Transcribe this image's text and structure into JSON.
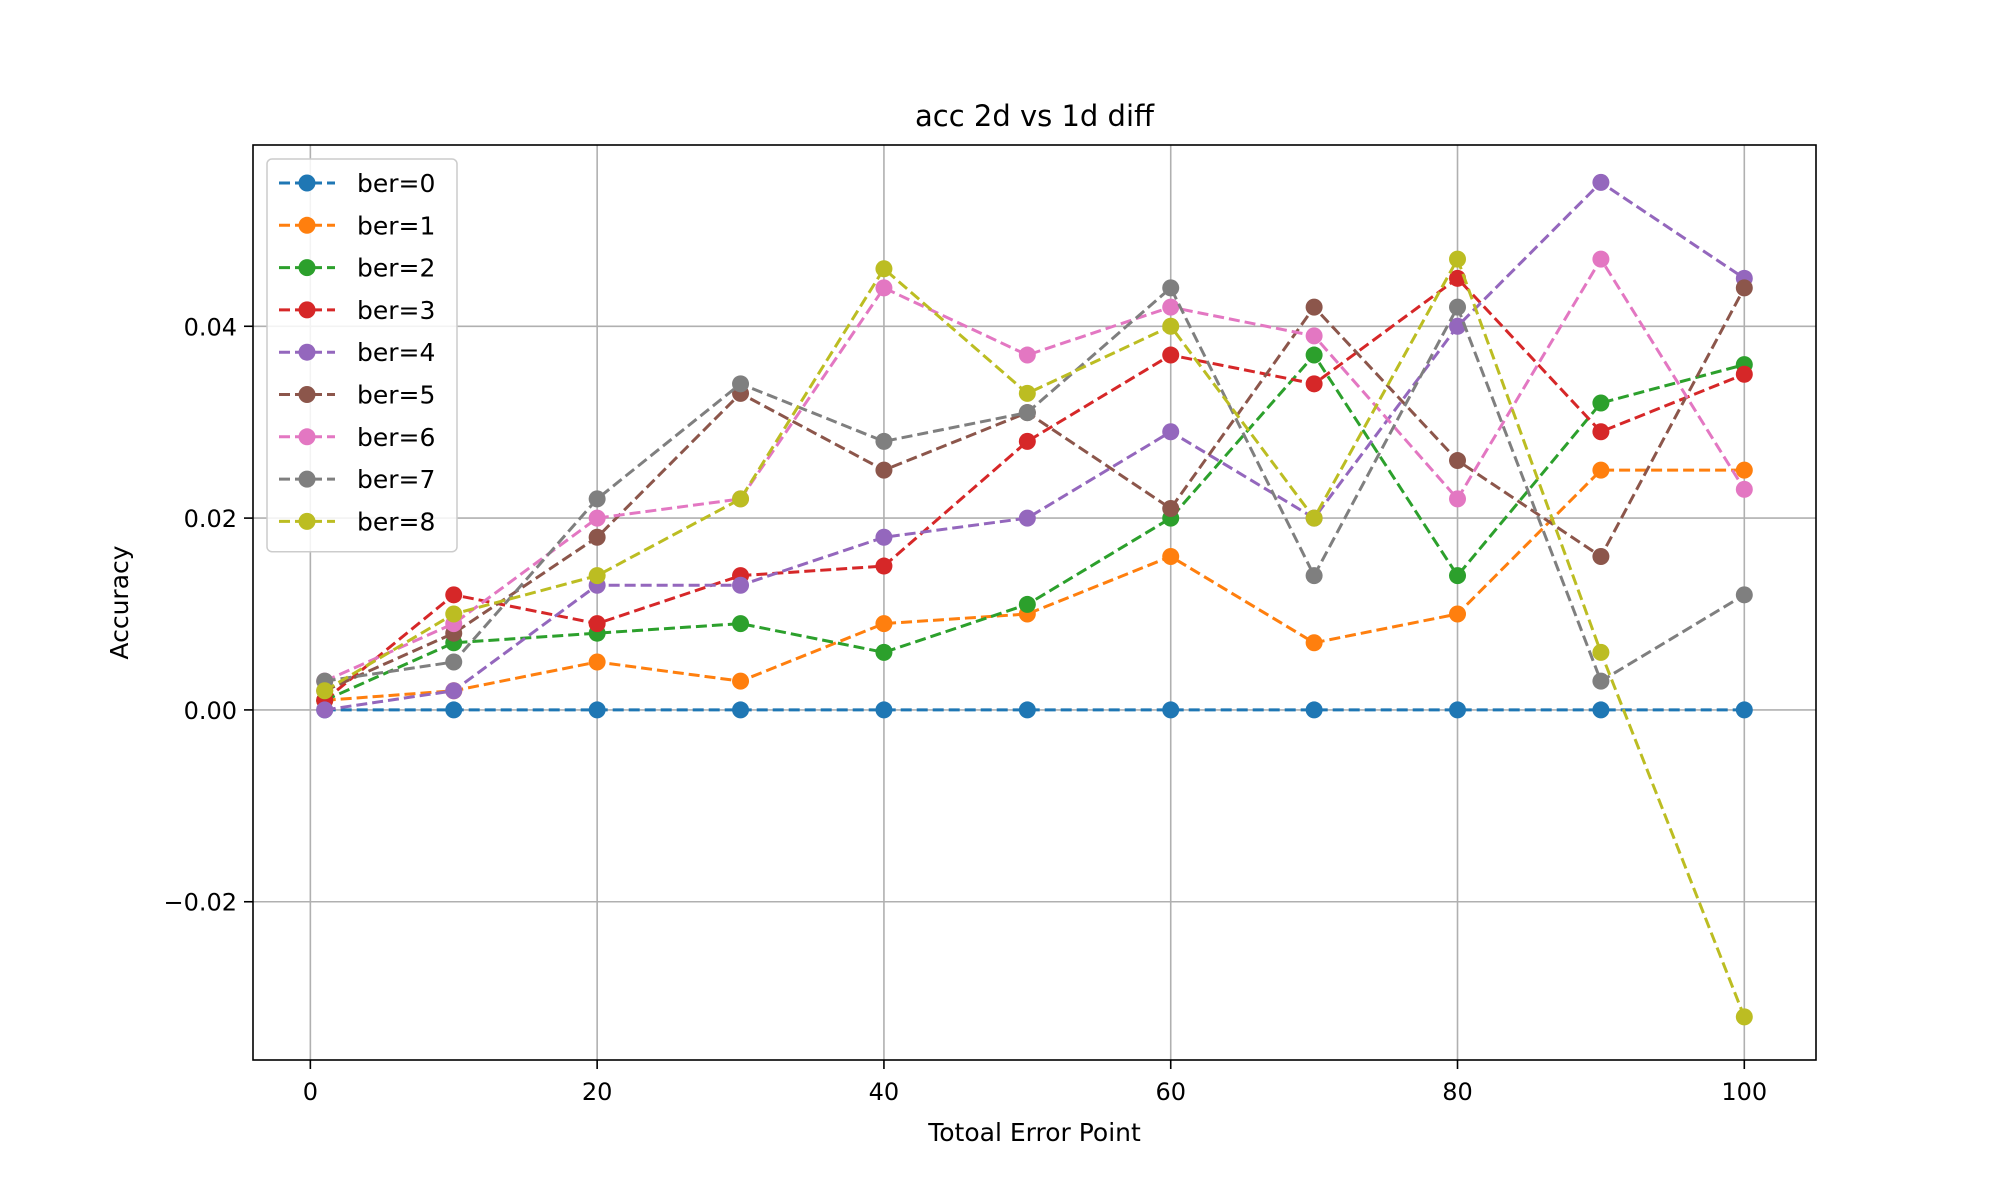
{
  "chart_data": {
    "type": "line",
    "title": "acc 2d vs 1d diff",
    "xlabel": "Totoal Error Point",
    "ylabel": "Accuracy",
    "x": [
      1,
      10,
      20,
      30,
      40,
      50,
      60,
      70,
      80,
      90,
      100
    ],
    "xlim": [
      -4,
      105
    ],
    "ylim": [
      -0.0365,
      0.0589
    ],
    "xticks": [
      0,
      20,
      40,
      60,
      80,
      100
    ],
    "xtick_labels": [
      "0",
      "20",
      "40",
      "60",
      "80",
      "100"
    ],
    "yticks": [
      -0.02,
      0.0,
      0.02,
      0.04
    ],
    "ytick_labels": [
      "−0.02",
      "0.00",
      "0.02",
      "0.04"
    ],
    "grid": true,
    "legend_position": "top-left",
    "line_style": "dashed",
    "marker": "circle",
    "series": [
      {
        "name": "ber=0",
        "color": "#1f77b4",
        "values": [
          0,
          0,
          0,
          0,
          0,
          0,
          0,
          0,
          0,
          0,
          0
        ]
      },
      {
        "name": "ber=1",
        "color": "#ff7f0e",
        "values": [
          0.001,
          0.002,
          0.005,
          0.003,
          0.009,
          0.01,
          0.016,
          0.007,
          0.01,
          0.025,
          0.025
        ]
      },
      {
        "name": "ber=2",
        "color": "#2ca02c",
        "values": [
          0.001,
          0.007,
          0.008,
          0.009,
          0.006,
          0.011,
          0.02,
          0.037,
          0.014,
          0.032,
          0.036
        ]
      },
      {
        "name": "ber=3",
        "color": "#d62728",
        "values": [
          0.001,
          0.012,
          0.009,
          0.014,
          0.015,
          0.028,
          0.037,
          0.034,
          0.045,
          0.029,
          0.035
        ]
      },
      {
        "name": "ber=4",
        "color": "#9467bd",
        "values": [
          0.0,
          0.002,
          0.013,
          0.013,
          0.018,
          0.02,
          0.029,
          0.02,
          0.04,
          0.055,
          0.045
        ]
      },
      {
        "name": "ber=5",
        "color": "#8c564b",
        "values": [
          0.002,
          0.008,
          0.018,
          0.033,
          0.025,
          0.031,
          0.021,
          0.042,
          0.026,
          0.016,
          0.044
        ]
      },
      {
        "name": "ber=6",
        "color": "#e377c2",
        "values": [
          0.003,
          0.009,
          0.02,
          0.022,
          0.044,
          0.037,
          0.042,
          0.039,
          0.022,
          0.047,
          0.023
        ]
      },
      {
        "name": "ber=7",
        "color": "#7f7f7f",
        "values": [
          0.003,
          0.005,
          0.022,
          0.034,
          0.028,
          0.031,
          0.044,
          0.014,
          0.042,
          0.003,
          0.012
        ]
      },
      {
        "name": "ber=8",
        "color": "#bcbd22",
        "values": [
          0.002,
          0.01,
          0.014,
          0.022,
          0.046,
          0.033,
          0.04,
          0.02,
          0.047,
          0.006,
          -0.032
        ]
      }
    ]
  }
}
